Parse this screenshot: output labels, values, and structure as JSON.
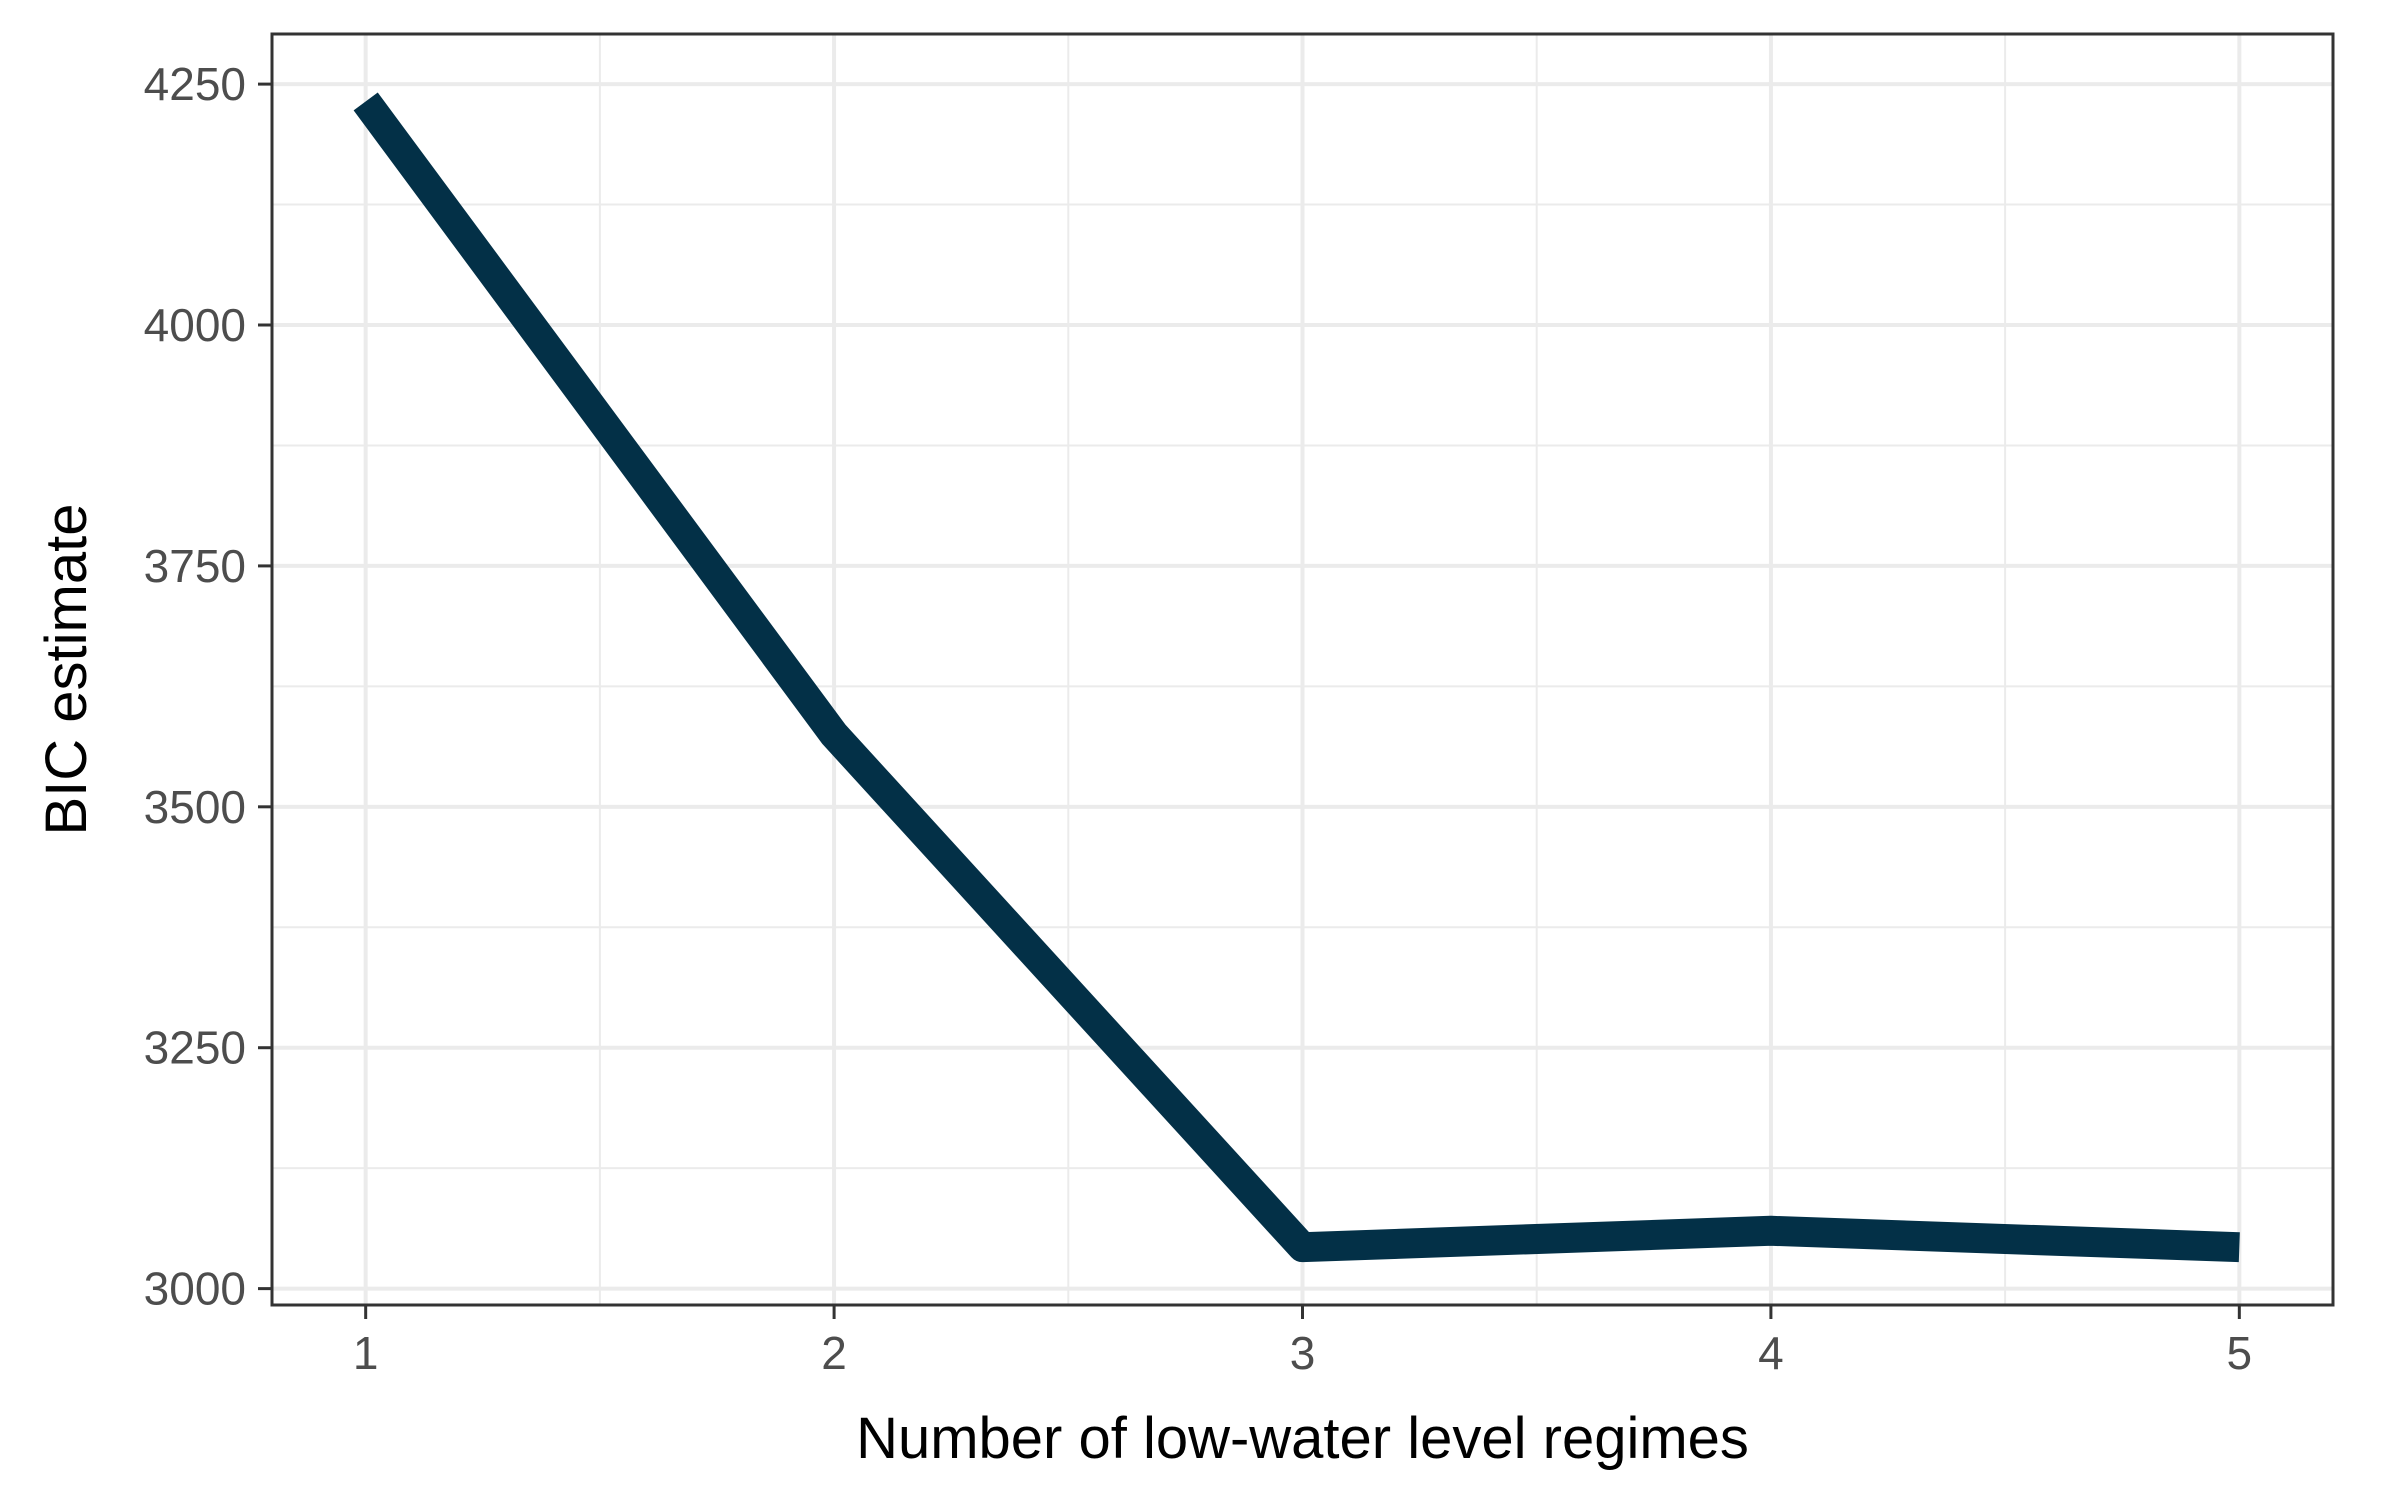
{
  "chart_data": {
    "type": "line",
    "xlabel": "Number of low-water level regimes",
    "ylabel": "BIC estimate",
    "x": [
      1,
      2,
      3,
      4,
      5
    ],
    "values": [
      4232,
      3575,
      3043,
      3060,
      3043
    ],
    "xticks": [
      1,
      2,
      3,
      4,
      5
    ],
    "xtick_labels": [
      "1",
      "2",
      "3",
      "4",
      "5"
    ],
    "yticks": [
      3000,
      3250,
      3500,
      3750,
      4000,
      4250
    ],
    "ytick_labels": [
      "3000",
      "3250",
      "3500",
      "3750",
      "4000",
      "4250"
    ],
    "xlim": [
      0.8,
      5.2
    ],
    "ylim": [
      2983,
      4302
    ],
    "grid": true,
    "line_color": "#033047",
    "grid_color": "#ebebeb",
    "panel_border_color": "#333333"
  }
}
